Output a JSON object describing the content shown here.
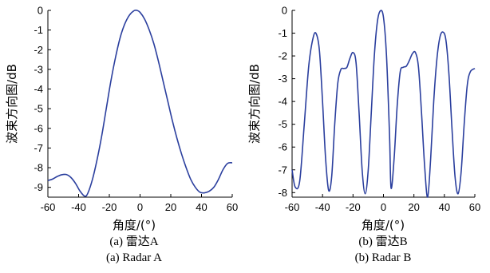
{
  "chart_data": [
    {
      "type": "line",
      "ylabel": "波束方向图/dB",
      "xlabel": "角度/(°)",
      "caption_cn": "(a) 雷达A",
      "caption_en": "(a) Radar A",
      "xlim": [
        -60,
        60
      ],
      "ylim": [
        -9.5,
        0
      ],
      "xticks": [
        "-60",
        "-40",
        "-20",
        "0",
        "20",
        "40",
        "60"
      ],
      "yticks": [
        "0",
        "-1",
        "-2",
        "-3",
        "-4",
        "-5",
        "-6",
        "-7",
        "-8",
        "-9"
      ],
      "line_color": "#2b3f9e",
      "series": [
        {
          "x": [
            -60,
            -57,
            -54,
            -51,
            -48,
            -45,
            -42,
            -39,
            -36,
            -34,
            -31,
            -28,
            -25,
            -22,
            -19,
            -16,
            -13,
            -10,
            -7,
            -4,
            -2,
            0,
            3,
            6,
            9,
            12,
            15,
            18,
            21,
            24,
            27,
            30,
            33,
            36,
            39,
            42,
            45,
            48,
            51,
            54,
            57,
            60
          ],
          "y": [
            -8.65,
            -8.58,
            -8.45,
            -8.36,
            -8.35,
            -8.5,
            -8.8,
            -9.2,
            -9.45,
            -9.3,
            -8.6,
            -7.6,
            -6.4,
            -5.0,
            -3.6,
            -2.4,
            -1.4,
            -0.7,
            -0.25,
            -0.02,
            0.0,
            -0.1,
            -0.45,
            -1.0,
            -1.7,
            -2.6,
            -3.6,
            -4.6,
            -5.6,
            -6.5,
            -7.3,
            -8.0,
            -8.6,
            -9.0,
            -9.25,
            -9.28,
            -9.2,
            -9.0,
            -8.6,
            -8.1,
            -7.78,
            -7.75
          ]
        }
      ]
    },
    {
      "type": "line",
      "ylabel": "波束方向图/dB",
      "xlabel": "角度/(°)",
      "caption_cn": "(b) 雷达B",
      "caption_en": "(b) Radar B",
      "xlim": [
        -60,
        60
      ],
      "ylim": [
        -8.2,
        0
      ],
      "xticks": [
        "-60",
        "-40",
        "-20",
        "0",
        "20",
        "40",
        "60"
      ],
      "yticks": [
        "0",
        "-1",
        "-2",
        "-3",
        "-4",
        "-5",
        "-6",
        "-7",
        "-8"
      ],
      "line_color": "#2b3f9e",
      "series": [
        {
          "x": [
            -60,
            -58,
            -55,
            -52,
            -49,
            -46,
            -44,
            -42,
            -40,
            -38,
            -36,
            -34,
            -32,
            -30,
            -28,
            -26,
            -24,
            -22,
            -20,
            -18,
            -16,
            -14,
            -12,
            -10,
            -8,
            -6,
            -4,
            -2,
            0,
            2,
            4,
            5,
            7,
            9,
            11,
            13,
            15,
            17,
            19,
            21,
            23,
            25,
            27,
            29,
            31,
            33,
            35,
            37,
            39,
            41,
            43,
            45,
            47,
            49,
            51,
            53,
            55,
            57,
            60
          ],
          "y": [
            -7.0,
            -7.75,
            -7.5,
            -5.0,
            -2.4,
            -1.15,
            -1.05,
            -1.8,
            -4.0,
            -6.5,
            -7.9,
            -7.3,
            -5.0,
            -3.2,
            -2.6,
            -2.55,
            -2.5,
            -2.1,
            -1.85,
            -2.3,
            -4.5,
            -7.0,
            -8.05,
            -7.0,
            -4.5,
            -2.0,
            -0.5,
            -0.02,
            -0.3,
            -2.0,
            -5.5,
            -7.8,
            -6.5,
            -4.2,
            -2.7,
            -2.5,
            -2.45,
            -2.2,
            -1.9,
            -1.85,
            -2.5,
            -4.5,
            -6.8,
            -8.2,
            -6.5,
            -4.0,
            -2.2,
            -1.2,
            -0.95,
            -1.3,
            -2.8,
            -5.2,
            -7.3,
            -8.05,
            -7.1,
            -5.0,
            -3.3,
            -2.7,
            -2.55
          ]
        }
      ]
    }
  ]
}
